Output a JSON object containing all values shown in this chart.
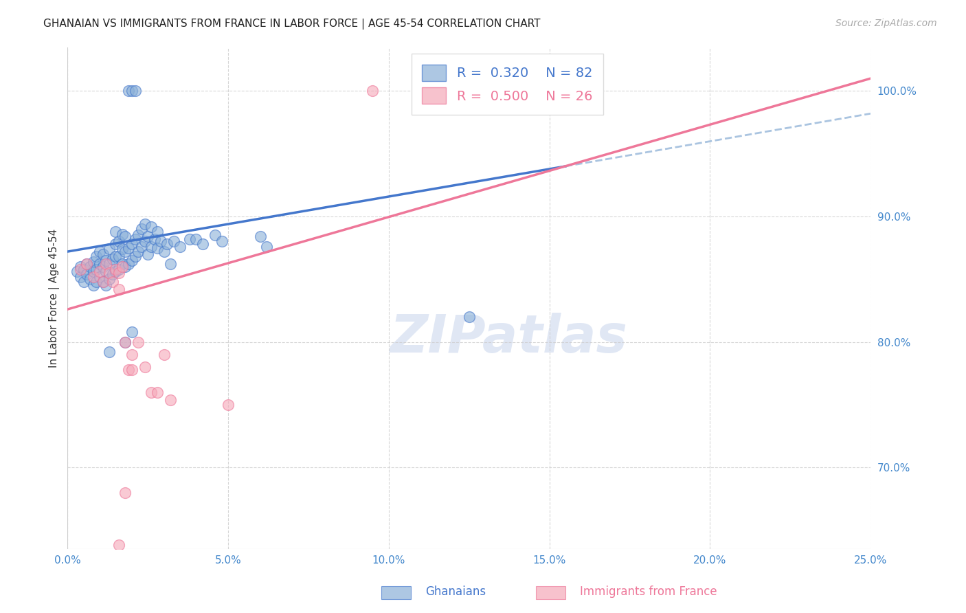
{
  "title": "GHANAIAN VS IMMIGRANTS FROM FRANCE IN LABOR FORCE | AGE 45-54 CORRELATION CHART",
  "source": "Source: ZipAtlas.com",
  "ylabel": "In Labor Force | Age 45-54",
  "xlim": [
    0.0,
    0.25
  ],
  "ylim": [
    0.635,
    1.035
  ],
  "xticks": [
    0.0,
    0.05,
    0.1,
    0.15,
    0.2,
    0.25
  ],
  "xticklabels": [
    "0.0%",
    "5.0%",
    "10.0%",
    "15.0%",
    "20.0%",
    "25.0%"
  ],
  "yticks": [
    0.7,
    0.8,
    0.9,
    1.0
  ],
  "yticklabels": [
    "70.0%",
    "80.0%",
    "90.0%",
    "100.0%"
  ],
  "background_color": "#ffffff",
  "grid_color": "#cccccc",
  "watermark_text": "ZIPatlas",
  "blue_color": "#8ab0d8",
  "pink_color": "#f5a8b8",
  "line_blue": "#4477cc",
  "line_pink": "#ee7799",
  "dashed_blue": "#aac4e0",
  "blue_scatter": [
    [
      0.003,
      0.856
    ],
    [
      0.004,
      0.852
    ],
    [
      0.004,
      0.86
    ],
    [
      0.005,
      0.848
    ],
    [
      0.005,
      0.858
    ],
    [
      0.006,
      0.854
    ],
    [
      0.006,
      0.862
    ],
    [
      0.007,
      0.85
    ],
    [
      0.007,
      0.86
    ],
    [
      0.008,
      0.845
    ],
    [
      0.008,
      0.856
    ],
    [
      0.008,
      0.864
    ],
    [
      0.009,
      0.848
    ],
    [
      0.009,
      0.858
    ],
    [
      0.009,
      0.868
    ],
    [
      0.01,
      0.852
    ],
    [
      0.01,
      0.862
    ],
    [
      0.01,
      0.872
    ],
    [
      0.011,
      0.848
    ],
    [
      0.011,
      0.86
    ],
    [
      0.011,
      0.87
    ],
    [
      0.012,
      0.845
    ],
    [
      0.012,
      0.856
    ],
    [
      0.012,
      0.865
    ],
    [
      0.013,
      0.85
    ],
    [
      0.013,
      0.862
    ],
    [
      0.013,
      0.874
    ],
    [
      0.014,
      0.854
    ],
    [
      0.014,
      0.866
    ],
    [
      0.015,
      0.856
    ],
    [
      0.015,
      0.868
    ],
    [
      0.015,
      0.878
    ],
    [
      0.015,
      0.888
    ],
    [
      0.016,
      0.858
    ],
    [
      0.016,
      0.868
    ],
    [
      0.016,
      0.88
    ],
    [
      0.017,
      0.862
    ],
    [
      0.017,
      0.874
    ],
    [
      0.017,
      0.886
    ],
    [
      0.018,
      0.86
    ],
    [
      0.018,
      0.872
    ],
    [
      0.018,
      0.884
    ],
    [
      0.019,
      0.862
    ],
    [
      0.019,
      0.875
    ],
    [
      0.02,
      0.865
    ],
    [
      0.02,
      0.878
    ],
    [
      0.021,
      0.868
    ],
    [
      0.021,
      0.882
    ],
    [
      0.022,
      0.872
    ],
    [
      0.022,
      0.885
    ],
    [
      0.023,
      0.876
    ],
    [
      0.023,
      0.89
    ],
    [
      0.024,
      0.88
    ],
    [
      0.024,
      0.894
    ],
    [
      0.025,
      0.87
    ],
    [
      0.025,
      0.884
    ],
    [
      0.026,
      0.876
    ],
    [
      0.026,
      0.892
    ],
    [
      0.027,
      0.882
    ],
    [
      0.028,
      0.875
    ],
    [
      0.028,
      0.888
    ],
    [
      0.029,
      0.88
    ],
    [
      0.03,
      0.872
    ],
    [
      0.031,
      0.878
    ],
    [
      0.032,
      0.862
    ],
    [
      0.033,
      0.88
    ],
    [
      0.035,
      0.876
    ],
    [
      0.038,
      0.882
    ],
    [
      0.04,
      0.882
    ],
    [
      0.042,
      0.878
    ],
    [
      0.046,
      0.885
    ],
    [
      0.048,
      0.88
    ],
    [
      0.06,
      0.884
    ],
    [
      0.062,
      0.876
    ],
    [
      0.013,
      0.792
    ],
    [
      0.018,
      0.8
    ],
    [
      0.02,
      0.808
    ],
    [
      0.125,
      0.82
    ],
    [
      0.019,
      1.0
    ],
    [
      0.02,
      1.0
    ],
    [
      0.021,
      1.0
    ]
  ],
  "pink_scatter": [
    [
      0.004,
      0.858
    ],
    [
      0.006,
      0.862
    ],
    [
      0.008,
      0.852
    ],
    [
      0.01,
      0.856
    ],
    [
      0.011,
      0.848
    ],
    [
      0.012,
      0.862
    ],
    [
      0.013,
      0.855
    ],
    [
      0.014,
      0.848
    ],
    [
      0.015,
      0.858
    ],
    [
      0.016,
      0.842
    ],
    [
      0.016,
      0.855
    ],
    [
      0.017,
      0.86
    ],
    [
      0.018,
      0.8
    ],
    [
      0.019,
      0.778
    ],
    [
      0.02,
      0.79
    ],
    [
      0.02,
      0.778
    ],
    [
      0.022,
      0.8
    ],
    [
      0.024,
      0.78
    ],
    [
      0.026,
      0.76
    ],
    [
      0.028,
      0.76
    ],
    [
      0.03,
      0.79
    ],
    [
      0.032,
      0.754
    ],
    [
      0.05,
      0.75
    ],
    [
      0.018,
      0.68
    ],
    [
      0.016,
      0.638
    ],
    [
      0.095,
      1.0
    ]
  ],
  "blue_line_solid": {
    "x0": 0.0,
    "x1": 0.155,
    "y0": 0.872,
    "y1": 0.94
  },
  "blue_line_dash": {
    "x0": 0.155,
    "x1": 0.25,
    "y0": 0.94,
    "y1": 0.982
  },
  "pink_line_solid": {
    "x0": 0.0,
    "x1": 0.25,
    "y0": 0.826,
    "y1": 1.01
  },
  "title_fontsize": 11,
  "axis_label_fontsize": 11,
  "tick_fontsize": 11,
  "legend_fontsize": 14,
  "source_fontsize": 10,
  "tick_color": "#4488cc",
  "axis_color": "#cccccc"
}
